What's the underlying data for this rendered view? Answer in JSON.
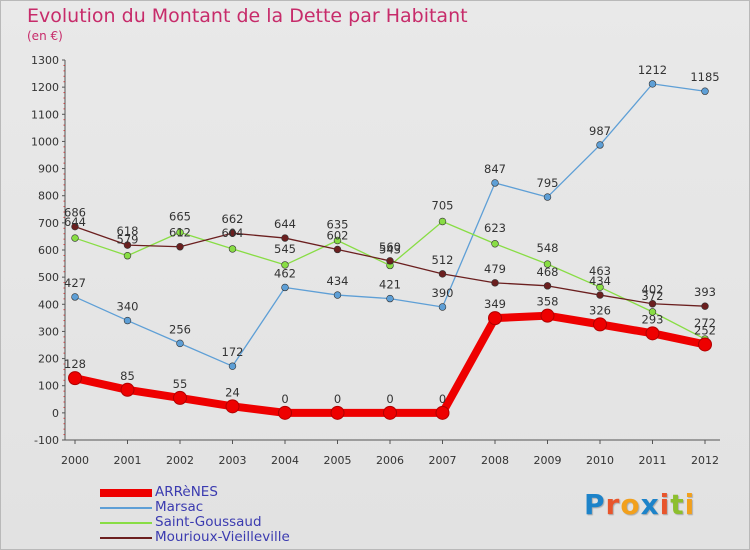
{
  "title": "Evolution du Montant de la Dette par Habitant",
  "unit_label": "(en €)",
  "chart_data": {
    "type": "line",
    "title": "Evolution du Montant de la Dette par Habitant",
    "subtitle": "(en €)",
    "x": [
      "2000",
      "2001",
      "2002",
      "2003",
      "2004",
      "2005",
      "2006",
      "2007",
      "2008",
      "2009",
      "2010",
      "2011",
      "2012"
    ],
    "ylim": [
      -100,
      1300
    ],
    "yticks": [
      -100,
      0,
      100,
      200,
      300,
      400,
      500,
      600,
      700,
      800,
      900,
      1000,
      1100,
      1200,
      1300
    ],
    "grid": false,
    "legend_position": "bottom-left",
    "series": [
      {
        "name": "ARRèNES",
        "color": "#ee0000",
        "values": [
          128,
          85,
          55,
          24,
          0,
          0,
          0,
          0,
          349,
          358,
          326,
          293,
          252
        ]
      },
      {
        "name": "Marsac",
        "color": "#5e9fd6",
        "values": [
          427,
          340,
          256,
          172,
          462,
          434,
          421,
          390,
          847,
          795,
          987,
          1212,
          1185
        ]
      },
      {
        "name": "Saint-Goussaud",
        "color": "#88dd44",
        "values": [
          644,
          579,
          665,
          604,
          545,
          635,
          543,
          705,
          623,
          548,
          463,
          372,
          272
        ]
      },
      {
        "name": "Mourioux-Vieilleville",
        "color": "#6b1f1f",
        "values": [
          686,
          618,
          612,
          662,
          644,
          602,
          560,
          512,
          479,
          468,
          434,
          402,
          393
        ]
      }
    ]
  },
  "logo": {
    "text": "Proxiti",
    "letters": [
      {
        "ch": "P",
        "color": "#1d83c9"
      },
      {
        "ch": "r",
        "color": "#e8552c"
      },
      {
        "ch": "o",
        "color": "#f2a01c"
      },
      {
        "ch": "x",
        "color": "#1d83c9"
      },
      {
        "ch": "i",
        "color": "#e8552c"
      },
      {
        "ch": "t",
        "color": "#8dbf2e"
      },
      {
        "ch": "i",
        "color": "#f2a01c"
      }
    ]
  }
}
